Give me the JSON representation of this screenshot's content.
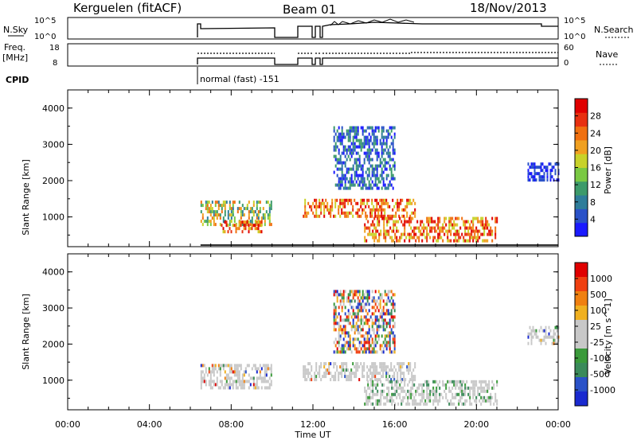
{
  "header": {
    "station": "Kerguelen (fitACF)",
    "beam": "Beam 01",
    "date": "18/Nov/2013"
  },
  "panels": {
    "nsky": {
      "label": "N.Sky",
      "ticks": [
        "10^5",
        "10^0"
      ],
      "right_label": "N.Search",
      "right_ticks": [
        "10^5",
        "10^0"
      ]
    },
    "freq": {
      "label_line1": "Freq.",
      "label_line2": "[MHz]",
      "ticks": [
        "18",
        "8"
      ],
      "right_label": "Nave",
      "right_ticks": [
        "60",
        "0"
      ]
    },
    "cpid": {
      "label": "CPID",
      "mode": "normal (fast) -151"
    }
  },
  "colors": {
    "power": [
      "#1a1aff",
      "#2a52c8",
      "#2e7d9a",
      "#3c9a6a",
      "#7ac943",
      "#c8d22a",
      "#f0a020",
      "#f07010",
      "#e83010",
      "#e00000"
    ],
    "velocity": [
      "#e00000",
      "#f04010",
      "#f08010",
      "#f0b020",
      "#c8c8c8",
      "#c8c8c8",
      "#3a9a3a",
      "#3a8a5a",
      "#2a52c8",
      "#1a2ad0"
    ]
  },
  "chart_data": [
    {
      "type": "heatmap",
      "name": "power",
      "xlabel": "",
      "ylabel": "Slant Range [km]",
      "xlim": [
        0,
        24
      ],
      "ylim": [
        180,
        4500
      ],
      "yticks": [
        1000,
        2000,
        3000,
        4000
      ],
      "colorbar": {
        "label": "Power [dB]",
        "ticks": [
          4,
          8,
          12,
          16,
          20,
          24,
          28
        ],
        "range": [
          0,
          32
        ]
      },
      "echo_regions": [
        {
          "t0": 6.5,
          "t1": 10.0,
          "r0": 800,
          "r1": 1450,
          "level": "green-orange"
        },
        {
          "t0": 7.5,
          "t1": 9.5,
          "r0": 600,
          "r1": 900,
          "level": "red-orange"
        },
        {
          "t0": 11.5,
          "t1": 17.0,
          "r0": 1000,
          "r1": 1500,
          "level": "orange-red"
        },
        {
          "t0": 14.5,
          "t1": 21.0,
          "r0": 300,
          "r1": 1000,
          "level": "orange-red"
        },
        {
          "t0": 13.0,
          "t1": 16.0,
          "r0": 1800,
          "r1": 3500,
          "level": "blue-green"
        },
        {
          "t0": 22.5,
          "t1": 24.0,
          "r0": 2000,
          "r1": 2500,
          "level": "blue"
        }
      ]
    },
    {
      "type": "heatmap",
      "name": "velocity",
      "xlabel": "Time UT",
      "ylabel": "Slant Range [km]",
      "xlim": [
        0,
        24
      ],
      "ylim": [
        180,
        4500
      ],
      "xticks": [
        "00:00",
        "04:00",
        "08:00",
        "12:00",
        "16:00",
        "20:00",
        "00:00"
      ],
      "yticks": [
        1000,
        2000,
        3000,
        4000
      ],
      "colorbar": {
        "label": "Velocity [m s^-1]",
        "ticks": [
          "1000",
          "500",
          "100",
          "25",
          "-25",
          "-100",
          "-500",
          "-1000"
        ]
      },
      "echo_regions": [
        {
          "t0": 6.5,
          "t1": 10.0,
          "r0": 800,
          "r1": 1450,
          "level": "grey"
        },
        {
          "t0": 11.5,
          "t1": 17.0,
          "r0": 1000,
          "r1": 1500,
          "level": "grey"
        },
        {
          "t0": 14.5,
          "t1": 21.0,
          "r0": 300,
          "r1": 1000,
          "level": "grey-green"
        },
        {
          "t0": 13.0,
          "t1": 16.0,
          "r0": 1800,
          "r1": 3500,
          "level": "mixed"
        },
        {
          "t0": 22.5,
          "t1": 24.0,
          "r0": 2000,
          "r1": 2500,
          "level": "grey"
        }
      ]
    }
  ]
}
